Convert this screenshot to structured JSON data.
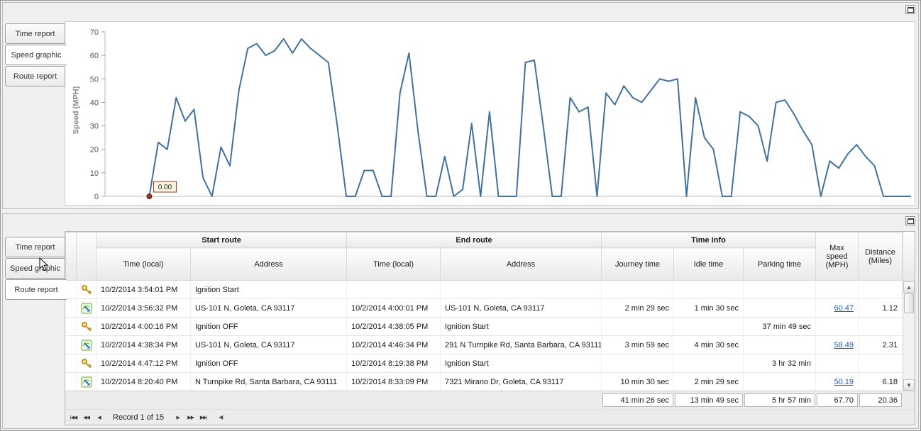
{
  "top_panel": {
    "tabs": [
      {
        "label": "Time report",
        "active": false
      },
      {
        "label": "Speed graphic",
        "active": true
      },
      {
        "label": "Route report",
        "active": false
      }
    ]
  },
  "chart_data": {
    "type": "line",
    "title": "",
    "xlabel": "",
    "ylabel": "Speed (MPH)",
    "ylim": [
      0,
      70
    ],
    "yticks": [
      0,
      10,
      20,
      30,
      40,
      50,
      60,
      70
    ],
    "grid": false,
    "legend": "none",
    "line_color": "#41719c",
    "axis_color": "#b8b8b8",
    "x_start_fraction": 0.055,
    "marker": {
      "index": 0,
      "label": "0.00",
      "color": "#9c3328"
    },
    "values": [
      0,
      23,
      20,
      42,
      32,
      37,
      8,
      0,
      21,
      13,
      45,
      63,
      65,
      60,
      62,
      67,
      61,
      67,
      63,
      60,
      57,
      30,
      0,
      0,
      11,
      11,
      0,
      0,
      44,
      61,
      28,
      0,
      0,
      17,
      0,
      3,
      31,
      0,
      36,
      0,
      0,
      0,
      57,
      58,
      30,
      0,
      0,
      42,
      36,
      38,
      0,
      44,
      39,
      47,
      42,
      40,
      45,
      50,
      49,
      50,
      0,
      42,
      25,
      20,
      0,
      0,
      36,
      34,
      30,
      15,
      40,
      41,
      35,
      28,
      22,
      0,
      15,
      12,
      18,
      22,
      17,
      13,
      0,
      0,
      0,
      0
    ]
  },
  "bottom_panel": {
    "tabs": [
      {
        "label": "Time report",
        "active": false
      },
      {
        "label": "Speed graphic",
        "active": false
      },
      {
        "label": "Route report",
        "active": true
      }
    ],
    "table": {
      "group_headers": [
        "Start route",
        "End route",
        "Time info"
      ],
      "sub_headers": [
        "Time (local)",
        "Address",
        "Time (local)",
        "Address",
        "Journey time",
        "Idle time",
        "Parking time"
      ],
      "right_headers": {
        "max_speed": "Max speed (MPH)",
        "distance": "Distance (Miles)"
      },
      "rows": [
        {
          "icon": "key",
          "start_time": "10/2/2014 3:54:01 PM",
          "start_addr": "Ignition Start",
          "end_time": "",
          "end_addr": "",
          "journey": "",
          "idle": "",
          "parking": "",
          "max_speed": "",
          "distance": ""
        },
        {
          "icon": "route",
          "start_time": "10/2/2014 3:56:32 PM",
          "start_addr": "US-101 N, Goleta, CA 93117",
          "end_time": "10/2/2014 4:00:01 PM",
          "end_addr": "US-101 N, Goleta, CA 93117",
          "journey": "2 min 29 sec",
          "idle": "1 min 30 sec",
          "parking": "",
          "max_speed": "60.47",
          "distance": "1.12"
        },
        {
          "icon": "key",
          "start_time": "10/2/2014 4:00:16 PM",
          "start_addr": "Ignition OFF",
          "end_time": "10/2/2014 4:38:05 PM",
          "end_addr": "Ignition Start",
          "journey": "",
          "idle": "",
          "parking": "37 min 49 sec",
          "max_speed": "",
          "distance": ""
        },
        {
          "icon": "route",
          "start_time": "10/2/2014 4:38:34 PM",
          "start_addr": "US-101 N, Goleta, CA 93117",
          "end_time": "10/2/2014 4:46:34 PM",
          "end_addr": "291 N Turnpike Rd, Santa Barbara, CA 93111",
          "journey": "3 min 59 sec",
          "idle": "4 min 30 sec",
          "parking": "",
          "max_speed": "58.49",
          "distance": "2.31"
        },
        {
          "icon": "key",
          "start_time": "10/2/2014 4:47:12 PM",
          "start_addr": "Ignition OFF",
          "end_time": "10/2/2014 8:19:38 PM",
          "end_addr": "Ignition Start",
          "journey": "",
          "idle": "",
          "parking": "3 hr 32 min",
          "max_speed": "",
          "distance": ""
        },
        {
          "icon": "route",
          "start_time": "10/2/2014 8:20:40 PM",
          "start_addr": "N Turnpike Rd, Santa Barbara, CA 93111",
          "end_time": "10/2/2014 8:33:09 PM",
          "end_addr": "7321 Mirano Dr, Goleta, CA 93117",
          "journey": "10 min 30 sec",
          "idle": "2 min 29 sec",
          "parking": "",
          "max_speed": "50.19",
          "distance": "6.18"
        }
      ],
      "summary": {
        "journey": "41 min 26 sec",
        "idle": "13 min 49 sec",
        "parking": "5 hr 57 min",
        "max_speed": "67.70",
        "distance": "20.36"
      }
    },
    "navigator": {
      "record_text": "Record 1 of 15",
      "buttons": {
        "first": "|◀◀",
        "prev_page": "◀◀",
        "prev": "◀",
        "next": "▶",
        "next_page": "▶▶",
        "last": "▶▶|"
      },
      "scroll_left": "◀"
    },
    "scrollbar": {
      "up": "▲",
      "down": "▼"
    }
  }
}
